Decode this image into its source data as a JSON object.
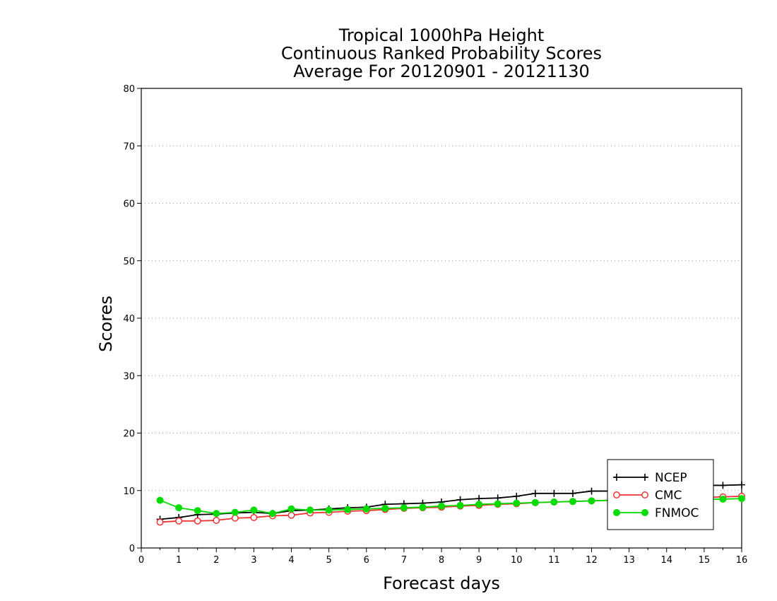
{
  "chart_data": {
    "type": "line",
    "title_lines": [
      "Tropical 1000hPa Height",
      "Continuous Ranked Probability Scores",
      "Average For 20120901 - 20121130"
    ],
    "xlabel": "Forecast days",
    "ylabel": "Scores",
    "xlim": [
      0,
      16
    ],
    "ylim": [
      0,
      80
    ],
    "x_ticks": [
      "0",
      "1",
      "2",
      "3",
      "4",
      "5",
      "6",
      "7",
      "8",
      "9",
      "10",
      "11",
      "12",
      "13",
      "14",
      "15",
      "16"
    ],
    "y_ticks": [
      "0",
      "10",
      "20",
      "30",
      "40",
      "50",
      "60",
      "70",
      "80"
    ],
    "grid": "horizontal dotted",
    "legend_position": "bottom-right",
    "x": [
      0.5,
      1,
      1.5,
      2,
      2.5,
      3,
      3.5,
      4,
      4.5,
      5,
      5.5,
      6,
      6.5,
      7,
      7.5,
      8,
      8.5,
      9,
      9.5,
      10,
      10.5,
      11,
      11.5,
      12,
      12.5,
      13,
      13.5,
      14,
      14.5,
      15,
      15.5,
      16
    ],
    "series": [
      {
        "name": "NCEP",
        "color": "#000000",
        "marker": "plus",
        "values": [
          5.0,
          5.3,
          5.8,
          5.9,
          6.1,
          6.2,
          6.0,
          6.5,
          6.6,
          6.8,
          7.0,
          7.1,
          7.6,
          7.7,
          7.8,
          8.0,
          8.4,
          8.6,
          8.7,
          9.0,
          9.5,
          9.5,
          9.5,
          9.9,
          9.9,
          10.1,
          10.3,
          10.5,
          10.6,
          10.9,
          10.9,
          11.0
        ]
      },
      {
        "name": "CMC",
        "color": "#f03232",
        "marker": "open-circle",
        "values": [
          4.5,
          4.7,
          4.7,
          4.8,
          5.2,
          5.3,
          5.6,
          5.7,
          6.1,
          6.2,
          6.4,
          6.5,
          6.7,
          6.9,
          7.0,
          7.1,
          7.3,
          7.4,
          7.6,
          7.7,
          7.9,
          8.0,
          8.1,
          8.2,
          8.3,
          8.4,
          8.5,
          8.6,
          8.7,
          8.8,
          8.9,
          9.0
        ]
      },
      {
        "name": "FNMOC",
        "color": "#00dc00",
        "marker": "filled-circle",
        "values": [
          8.3,
          7.0,
          6.5,
          6.0,
          6.2,
          6.6,
          6.0,
          6.8,
          6.6,
          6.6,
          6.7,
          6.8,
          6.9,
          7.0,
          7.1,
          7.3,
          7.4,
          7.6,
          7.7,
          7.8,
          7.9,
          8.0,
          8.1,
          8.2,
          8.3,
          8.3,
          8.4,
          8.4,
          8.5,
          8.5,
          8.5,
          8.6
        ]
      }
    ]
  }
}
